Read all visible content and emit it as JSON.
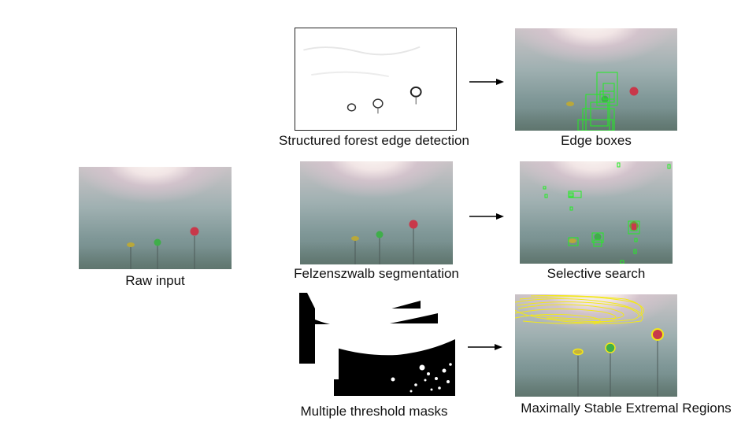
{
  "captions": {
    "raw_input": "Raw input",
    "structured_forest": "Structured forest edge detection",
    "edge_boxes": "Edge boxes",
    "felzenszwalb": "Felzenszwalb segmentation",
    "selective_search": "Selective search",
    "threshold_masks": "Multiple threshold masks",
    "mser": "Maximally Stable Extremal Regions"
  },
  "colors": {
    "box_green": "#22ee22",
    "region_yellow": "#f2e81a",
    "buoy_red": "#c8384a",
    "buoy_green": "#3fae4a",
    "buoy_yellow": "#b9a83a"
  }
}
